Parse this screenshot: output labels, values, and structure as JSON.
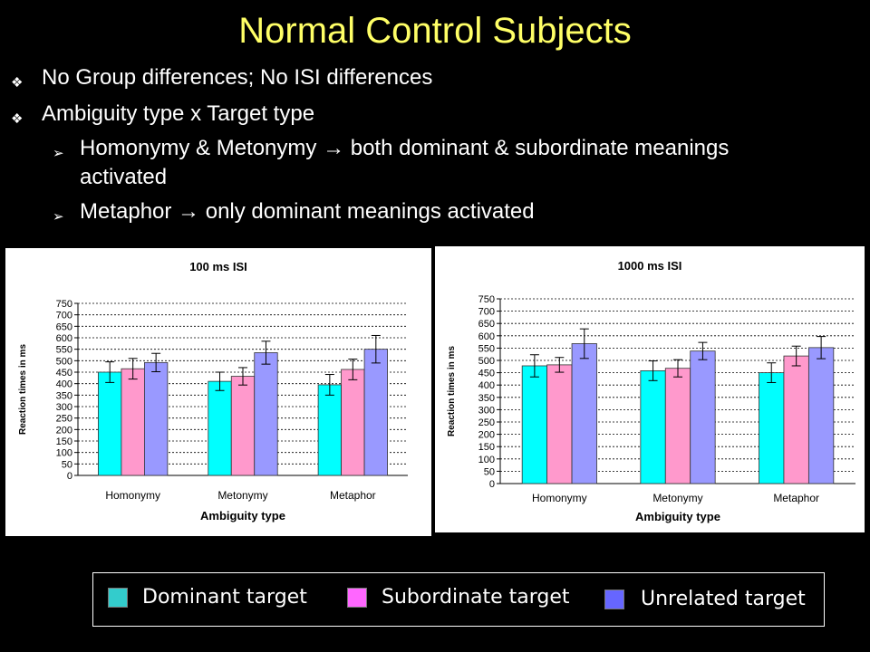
{
  "slide": {
    "title": "Normal Control Subjects",
    "bullets": [
      "No Group differences; No ISI differences",
      "Ambiguity type x Target type"
    ],
    "sub_bullets": [
      "Homonymy & Metonymy → both dominant & subordinate meanings",
      "activated",
      "Metaphor → only dominant meanings activated"
    ]
  },
  "legend": {
    "items": [
      {
        "label": "Dominant target",
        "color": "#33cccc"
      },
      {
        "label": "Subordinate target",
        "color": "#ff66ff"
      },
      {
        "label": "Unrelated target",
        "color": "#6666ff"
      }
    ]
  },
  "chart_data": [
    {
      "type": "bar",
      "title": "100 ms ISI",
      "xlabel": "Ambiguity type",
      "ylabel": "Reaction times in ms",
      "ylim": [
        0,
        750
      ],
      "yticks": [
        0,
        50,
        100,
        150,
        200,
        250,
        300,
        350,
        400,
        450,
        500,
        550,
        600,
        650,
        700,
        750
      ],
      "categories": [
        "Homonymy",
        "Metonymy",
        "Metaphor"
      ],
      "grid": true,
      "series": [
        {
          "name": "Dominant target",
          "color": "#00ffff",
          "values": [
            450,
            410,
            395
          ],
          "errors": [
            45,
            40,
            45
          ]
        },
        {
          "name": "Subordinate target",
          "color": "#ff99cc",
          "values": [
            465,
            432,
            462
          ],
          "errors": [
            45,
            38,
            45
          ]
        },
        {
          "name": "Unrelated target",
          "color": "#9999ff",
          "values": [
            492,
            535,
            550
          ],
          "errors": [
            40,
            50,
            60
          ]
        }
      ]
    },
    {
      "type": "bar",
      "title": "1000 ms ISI",
      "xlabel": "Ambiguity type",
      "ylabel": "Reaction times in ms",
      "ylim": [
        0,
        750
      ],
      "yticks": [
        0,
        50,
        100,
        150,
        200,
        250,
        300,
        350,
        400,
        450,
        500,
        550,
        600,
        650,
        700,
        750
      ],
      "categories": [
        "Homonymy",
        "Metonymy",
        "Metaphor"
      ],
      "grid": true,
      "series": [
        {
          "name": "Dominant target",
          "color": "#00ffff",
          "values": [
            478,
            458,
            450
          ],
          "errors": [
            45,
            40,
            40
          ]
        },
        {
          "name": "Subordinate target",
          "color": "#ff99cc",
          "values": [
            482,
            468,
            518
          ],
          "errors": [
            30,
            35,
            40
          ]
        },
        {
          "name": "Unrelated target",
          "color": "#9999ff",
          "values": [
            568,
            538,
            552
          ],
          "errors": [
            60,
            35,
            45
          ]
        }
      ]
    }
  ]
}
